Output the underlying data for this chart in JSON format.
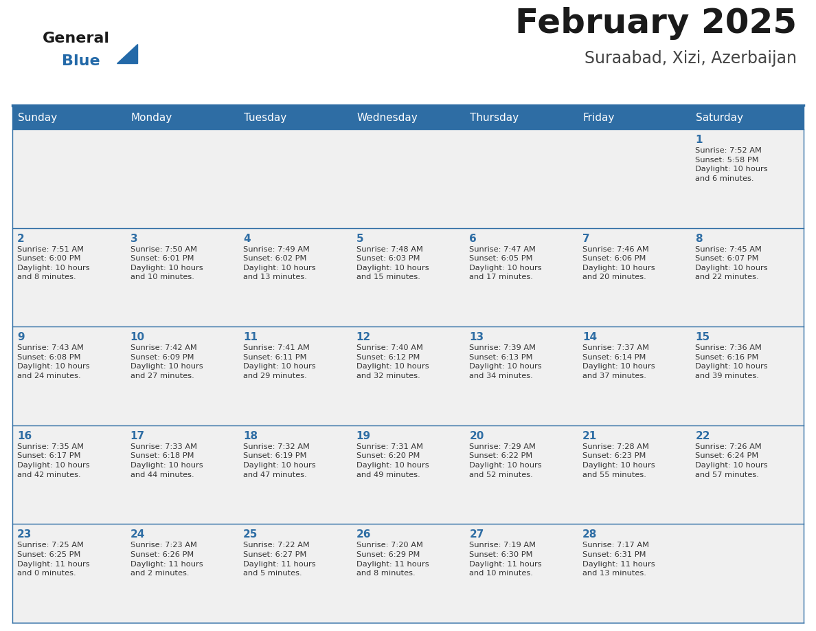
{
  "title": "February 2025",
  "subtitle": "Suraabad, Xizi, Azerbaijan",
  "header_bg": "#2E6DA4",
  "header_text_color": "#FFFFFF",
  "cell_bg": "#F0F0F0",
  "cell_bg_white": "#FFFFFF",
  "day_number_color": "#2E6DA4",
  "info_text_color": "#333333",
  "border_color": "#2E6DA4",
  "days_of_week": [
    "Sunday",
    "Monday",
    "Tuesday",
    "Wednesday",
    "Thursday",
    "Friday",
    "Saturday"
  ],
  "weeks": [
    [
      {
        "day": null,
        "info": null
      },
      {
        "day": null,
        "info": null
      },
      {
        "day": null,
        "info": null
      },
      {
        "day": null,
        "info": null
      },
      {
        "day": null,
        "info": null
      },
      {
        "day": null,
        "info": null
      },
      {
        "day": 1,
        "info": "Sunrise: 7:52 AM\nSunset: 5:58 PM\nDaylight: 10 hours\nand 6 minutes."
      }
    ],
    [
      {
        "day": 2,
        "info": "Sunrise: 7:51 AM\nSunset: 6:00 PM\nDaylight: 10 hours\nand 8 minutes."
      },
      {
        "day": 3,
        "info": "Sunrise: 7:50 AM\nSunset: 6:01 PM\nDaylight: 10 hours\nand 10 minutes."
      },
      {
        "day": 4,
        "info": "Sunrise: 7:49 AM\nSunset: 6:02 PM\nDaylight: 10 hours\nand 13 minutes."
      },
      {
        "day": 5,
        "info": "Sunrise: 7:48 AM\nSunset: 6:03 PM\nDaylight: 10 hours\nand 15 minutes."
      },
      {
        "day": 6,
        "info": "Sunrise: 7:47 AM\nSunset: 6:05 PM\nDaylight: 10 hours\nand 17 minutes."
      },
      {
        "day": 7,
        "info": "Sunrise: 7:46 AM\nSunset: 6:06 PM\nDaylight: 10 hours\nand 20 minutes."
      },
      {
        "day": 8,
        "info": "Sunrise: 7:45 AM\nSunset: 6:07 PM\nDaylight: 10 hours\nand 22 minutes."
      }
    ],
    [
      {
        "day": 9,
        "info": "Sunrise: 7:43 AM\nSunset: 6:08 PM\nDaylight: 10 hours\nand 24 minutes."
      },
      {
        "day": 10,
        "info": "Sunrise: 7:42 AM\nSunset: 6:09 PM\nDaylight: 10 hours\nand 27 minutes."
      },
      {
        "day": 11,
        "info": "Sunrise: 7:41 AM\nSunset: 6:11 PM\nDaylight: 10 hours\nand 29 minutes."
      },
      {
        "day": 12,
        "info": "Sunrise: 7:40 AM\nSunset: 6:12 PM\nDaylight: 10 hours\nand 32 minutes."
      },
      {
        "day": 13,
        "info": "Sunrise: 7:39 AM\nSunset: 6:13 PM\nDaylight: 10 hours\nand 34 minutes."
      },
      {
        "day": 14,
        "info": "Sunrise: 7:37 AM\nSunset: 6:14 PM\nDaylight: 10 hours\nand 37 minutes."
      },
      {
        "day": 15,
        "info": "Sunrise: 7:36 AM\nSunset: 6:16 PM\nDaylight: 10 hours\nand 39 minutes."
      }
    ],
    [
      {
        "day": 16,
        "info": "Sunrise: 7:35 AM\nSunset: 6:17 PM\nDaylight: 10 hours\nand 42 minutes."
      },
      {
        "day": 17,
        "info": "Sunrise: 7:33 AM\nSunset: 6:18 PM\nDaylight: 10 hours\nand 44 minutes."
      },
      {
        "day": 18,
        "info": "Sunrise: 7:32 AM\nSunset: 6:19 PM\nDaylight: 10 hours\nand 47 minutes."
      },
      {
        "day": 19,
        "info": "Sunrise: 7:31 AM\nSunset: 6:20 PM\nDaylight: 10 hours\nand 49 minutes."
      },
      {
        "day": 20,
        "info": "Sunrise: 7:29 AM\nSunset: 6:22 PM\nDaylight: 10 hours\nand 52 minutes."
      },
      {
        "day": 21,
        "info": "Sunrise: 7:28 AM\nSunset: 6:23 PM\nDaylight: 10 hours\nand 55 minutes."
      },
      {
        "day": 22,
        "info": "Sunrise: 7:26 AM\nSunset: 6:24 PM\nDaylight: 10 hours\nand 57 minutes."
      }
    ],
    [
      {
        "day": 23,
        "info": "Sunrise: 7:25 AM\nSunset: 6:25 PM\nDaylight: 11 hours\nand 0 minutes."
      },
      {
        "day": 24,
        "info": "Sunrise: 7:23 AM\nSunset: 6:26 PM\nDaylight: 11 hours\nand 2 minutes."
      },
      {
        "day": 25,
        "info": "Sunrise: 7:22 AM\nSunset: 6:27 PM\nDaylight: 11 hours\nand 5 minutes."
      },
      {
        "day": 26,
        "info": "Sunrise: 7:20 AM\nSunset: 6:29 PM\nDaylight: 11 hours\nand 8 minutes."
      },
      {
        "day": 27,
        "info": "Sunrise: 7:19 AM\nSunset: 6:30 PM\nDaylight: 11 hours\nand 10 minutes."
      },
      {
        "day": 28,
        "info": "Sunrise: 7:17 AM\nSunset: 6:31 PM\nDaylight: 11 hours\nand 13 minutes."
      },
      {
        "day": null,
        "info": null
      }
    ]
  ],
  "logo_general_color": "#1a1a1a",
  "logo_blue_color": "#2369A8",
  "logo_triangle_color": "#2369A8"
}
